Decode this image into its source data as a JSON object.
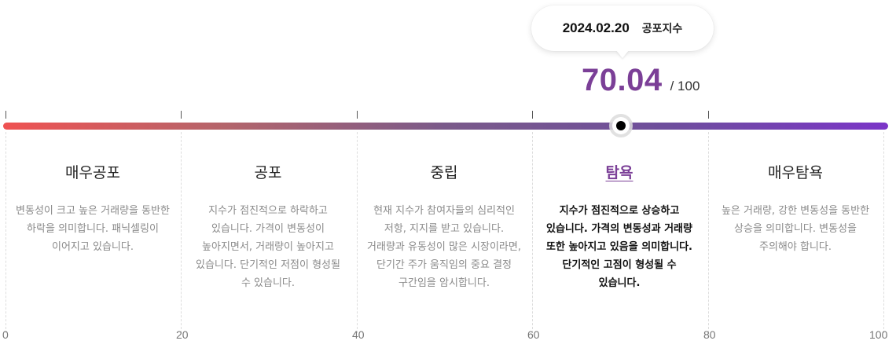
{
  "tooltip": {
    "date": "2024.02.20",
    "label": "공포지수"
  },
  "score": {
    "value": "70.04",
    "max": "/ 100"
  },
  "colors": {
    "accent": "#7b3f97",
    "bar_start": "#ef5252",
    "bar_end": "#7b35c8"
  },
  "categories": [
    {
      "title": "매우공포",
      "description": "변동성이 크고 높은 거래량을 동반한 하락을 의미합니다. 패닉셀링이 이어지고 있습니다."
    },
    {
      "title": "공포",
      "description": "지수가 점진적으로 하락하고 있습니다. 가격이 변동성이 높아지면서, 거래량이 높아지고 있습니다. 단기적인 저점이 형성될 수 있습니다."
    },
    {
      "title": "중립",
      "description": "현재 지수가 참여자들의 심리적인 저항, 지지를 받고 있습니다. 거래량과 유동성이 많은 시장이라면, 단기간 주가 움직임의 중요 결정 구간임을 암시합니다."
    },
    {
      "title": "탐욕",
      "description": "지수가 점진적으로 상승하고 있습니다. 가격의 변동성과 거래량 또한 높아지고 있음을 의미합니다. 단기적인 고점이 형성될 수 있습니다."
    },
    {
      "title": "매우탐욕",
      "description": "높은 거래량, 강한 변동성을 동반한 상승을 의미합니다. 변동성을 주의해야 합니다."
    }
  ],
  "active_category": "탐욕",
  "scale": [
    "0",
    "20",
    "40",
    "60",
    "80",
    "100"
  ]
}
